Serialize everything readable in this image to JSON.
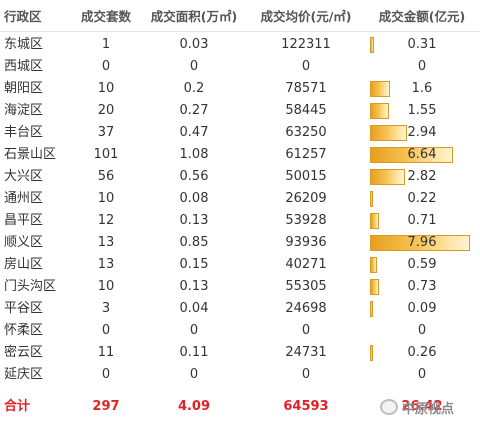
{
  "header": [
    "行政区",
    "成交套数",
    "成交面积(万㎡)",
    "成交均价(元/㎡)",
    "成交金额(亿元)"
  ],
  "rows": [
    {
      "district": "东城区",
      "units": "1",
      "area": "0.03",
      "price": "122311",
      "amount": "0.31",
      "amount_value": 0.31
    },
    {
      "district": "西城区",
      "units": "0",
      "area": "0",
      "price": "0",
      "amount": "0",
      "amount_value": 0
    },
    {
      "district": "朝阳区",
      "units": "10",
      "area": "0.2",
      "price": "78571",
      "amount": "1.6",
      "amount_value": 1.6
    },
    {
      "district": "海淀区",
      "units": "20",
      "area": "0.27",
      "price": "58445",
      "amount": "1.55",
      "amount_value": 1.55
    },
    {
      "district": "丰台区",
      "units": "37",
      "area": "0.47",
      "price": "63250",
      "amount": "2.94",
      "amount_value": 2.94
    },
    {
      "district": "石景山区",
      "units": "101",
      "area": "1.08",
      "price": "61257",
      "amount": "6.64",
      "amount_value": 6.64
    },
    {
      "district": "大兴区",
      "units": "56",
      "area": "0.56",
      "price": "50015",
      "amount": "2.82",
      "amount_value": 2.82
    },
    {
      "district": "通州区",
      "units": "10",
      "area": "0.08",
      "price": "26209",
      "amount": "0.22",
      "amount_value": 0.22
    },
    {
      "district": "昌平区",
      "units": "12",
      "area": "0.13",
      "price": "53928",
      "amount": "0.71",
      "amount_value": 0.71
    },
    {
      "district": "顺义区",
      "units": "13",
      "area": "0.85",
      "price": "93936",
      "amount": "7.96",
      "amount_value": 7.96
    },
    {
      "district": "房山区",
      "units": "13",
      "area": "0.15",
      "price": "40271",
      "amount": "0.59",
      "amount_value": 0.59
    },
    {
      "district": "门头沟区",
      "units": "10",
      "area": "0.13",
      "price": "55305",
      "amount": "0.73",
      "amount_value": 0.73
    },
    {
      "district": "平谷区",
      "units": "3",
      "area": "0.04",
      "price": "24698",
      "amount": "0.09",
      "amount_value": 0.09
    },
    {
      "district": "怀柔区",
      "units": "0",
      "area": "0",
      "price": "0",
      "amount": "0",
      "amount_value": 0
    },
    {
      "district": "密云区",
      "units": "11",
      "area": "0.11",
      "price": "24731",
      "amount": "0.26",
      "amount_value": 0.26
    },
    {
      "district": "延庆区",
      "units": "0",
      "area": "0",
      "price": "0",
      "amount": "0",
      "amount_value": 0
    }
  ],
  "total": {
    "label": "合计",
    "units": "297",
    "area": "4.09",
    "price": "64593",
    "amount": "26.42"
  },
  "amount_bar_max": 7.96,
  "colors": {
    "total_text": "#e31e24",
    "bar_fill": "#f6c253",
    "bar_border": "#d99a2a"
  },
  "watermark": {
    "icon": "wechat-logo-icon",
    "text": "中原视点"
  }
}
